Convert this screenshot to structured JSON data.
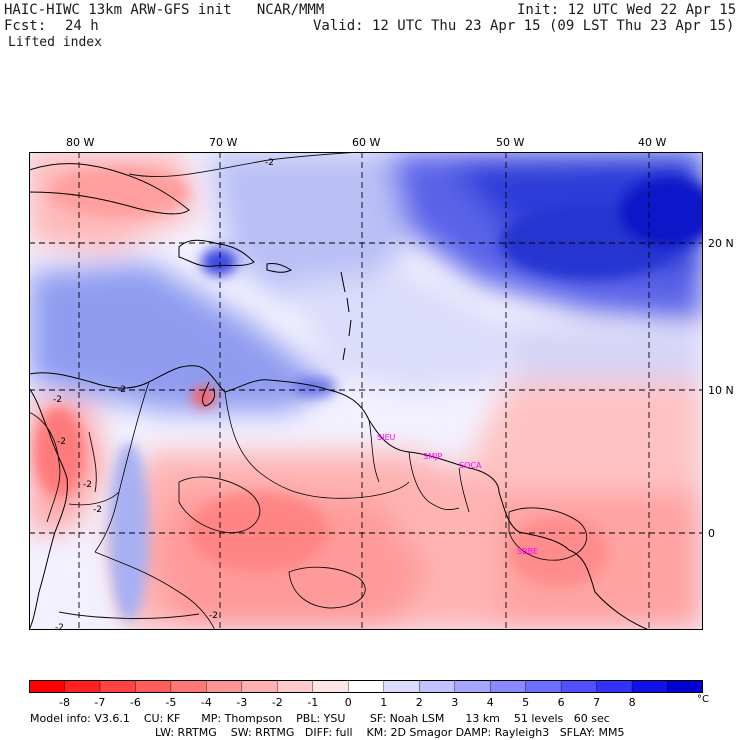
{
  "header": {
    "title_left": "HAIC-HIWC 13km ARW-GFS init   NCAR/MMM",
    "init": "Init: 12 UTC Wed 22 Apr 15",
    "fcst_label": "Fcst:",
    "fcst_value": "24 h",
    "valid": "Valid: 12 UTC Thu 23 Apr 15 (09 LST Thu 23 Apr 15)",
    "field": "Lifted index"
  },
  "map": {
    "longitude_labels": [
      "80 W",
      "70 W",
      "60 W",
      "50 W",
      "40 W"
    ],
    "latitude_labels": [
      "20 N",
      "10 N",
      "0"
    ],
    "contour_labels": [
      "-2",
      "-2",
      "-2",
      "-2",
      "-2",
      "-2",
      "-2",
      "-2"
    ],
    "sites": [
      "SIEU",
      "SMJP",
      "SOCA",
      "SBBE"
    ]
  },
  "colorbar": {
    "ticks": [
      "-8",
      "-7",
      "-6",
      "-5",
      "-4",
      "-3",
      "-2",
      "-1",
      "0",
      "1",
      "2",
      "3",
      "4",
      "5",
      "6",
      "7",
      "8"
    ],
    "unit": "°C",
    "colors": [
      "#ff0000",
      "#ff2020",
      "#ff4242",
      "#ff5c5c",
      "#ff7878",
      "#ff9595",
      "#ffb0b0",
      "#ffcaca",
      "#ffe6e6",
      "#ffffff",
      "#dcdcff",
      "#c2c2ff",
      "#a6a6ff",
      "#8a8aff",
      "#6e6eff",
      "#5050ff",
      "#3232f8",
      "#1010e8",
      "#0000d0"
    ]
  },
  "footer": {
    "line1": "Model info: V3.6.1    CU: KF      MP: Thompson    PBL: YSU       SF: Noah LSM      13 km    51 levels   60 sec",
    "line2": "LW: RRTMG    SW: RRTMG   DIFF: full    KM: 2D Smagor DAMP: Rayleigh3   SFLAY: MM5"
  }
}
